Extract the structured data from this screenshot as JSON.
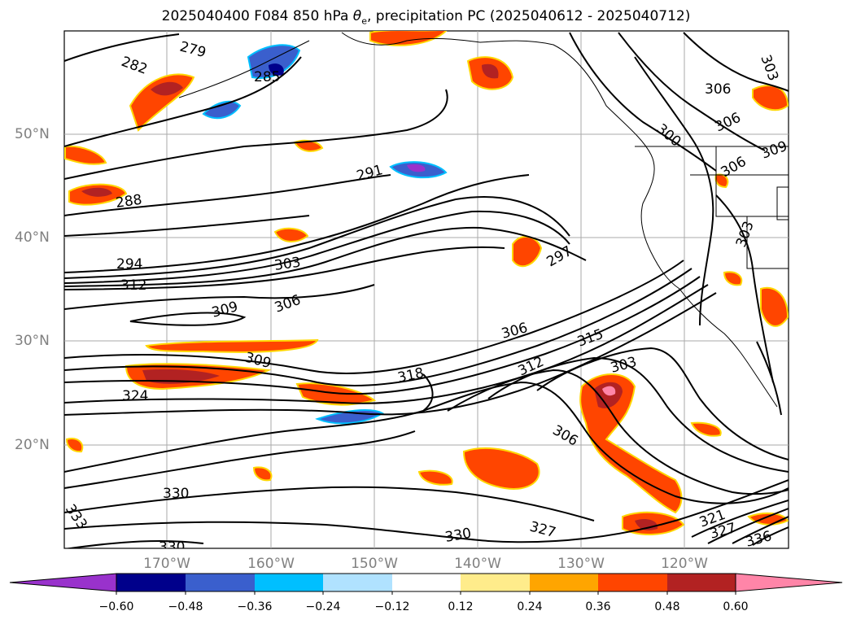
{
  "title": {
    "prefix": "2025040400 F084 850 hPa ",
    "theta": "θ",
    "sub": "e",
    "suffix": ", precipitation PC (2025040612 - 2025040712)"
  },
  "map": {
    "lat_labels": [
      "50°N",
      "40°N",
      "30°N",
      "20°N"
    ],
    "lon_labels": [
      "170°W",
      "160°W",
      "150°W",
      "140°W",
      "130°W",
      "120°W"
    ],
    "lon_range": [
      -180,
      -110
    ],
    "lat_range": [
      10,
      60
    ],
    "contour_labels": [
      "282",
      "279",
      "285",
      "291",
      "288",
      "294",
      "303",
      "312",
      "297",
      "309",
      "306",
      "306",
      "315",
      "318",
      "312",
      "303",
      "309",
      "324",
      "306",
      "330",
      "333",
      "330",
      "327",
      "321",
      "327",
      "330",
      "336",
      "306",
      "306",
      "303",
      "309",
      "306",
      "300",
      "303"
    ]
  },
  "colorbar": {
    "ticks": [
      "−0.60",
      "−0.48",
      "−0.36",
      "−0.24",
      "−0.12",
      "0.12",
      "0.24",
      "0.36",
      "0.48",
      "0.60"
    ],
    "colors": [
      "#9932cc",
      "#00008b",
      "#3a5fcd",
      "#00bfff",
      "#b0e2ff",
      "#ffffff",
      "#ffec8b",
      "#ffa500",
      "#ff4500",
      "#b22222",
      "#ff85a8"
    ]
  }
}
